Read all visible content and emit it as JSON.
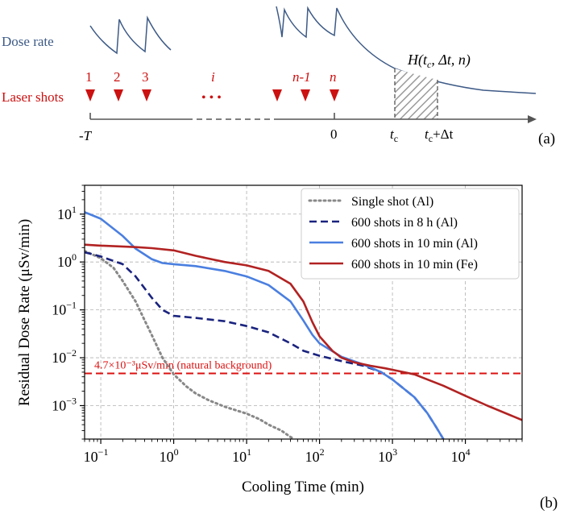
{
  "panel_a": {
    "label": "(a)",
    "dose_rate_label": "Dose rate",
    "laser_shots_label": "Laser shots",
    "shot_numbers": [
      "1",
      "2",
      "3",
      "i",
      "n-1",
      "n"
    ],
    "dots": "• • •",
    "axis_labels": {
      "start": "-T",
      "zero": "0",
      "tc": "t",
      "tc_sub": "c",
      "tc_dt_prefix": "t",
      "tc_dt_sub": "c",
      "tc_dt_suffix": "+Δt"
    },
    "function_label": "H(t",
    "function_label_sub": "c",
    "function_label_rest": ", Δt, n)",
    "colors": {
      "dose": "#3d5a86",
      "shots": "#cc1111",
      "hatch": "#9a9a9a"
    }
  },
  "chart_data": {
    "type": "line",
    "panel_label": "(b)",
    "xlabel": "Cooling Time (min)",
    "ylabel": "Residual Dose Rate (μSv/min)",
    "xscale": "log",
    "yscale": "log",
    "xlim": [
      0.06,
      60000
    ],
    "ylim": [
      0.0002,
      40
    ],
    "xticks": [
      {
        "value": 0.1,
        "base": "10",
        "exp": "−1"
      },
      {
        "value": 1,
        "base": "10",
        "exp": "0"
      },
      {
        "value": 10,
        "base": "10",
        "exp": "1"
      },
      {
        "value": 100,
        "base": "10",
        "exp": "2"
      },
      {
        "value": 1000,
        "base": "10",
        "exp": "3"
      },
      {
        "value": 10000,
        "base": "10",
        "exp": "4"
      }
    ],
    "yticks": [
      {
        "value": 0.001,
        "base": "10",
        "exp": "−3"
      },
      {
        "value": 0.01,
        "base": "10",
        "exp": "−2"
      },
      {
        "value": 0.1,
        "base": "10",
        "exp": "−1"
      },
      {
        "value": 1,
        "base": "10",
        "exp": "0"
      },
      {
        "value": 10,
        "base": "10",
        "exp": "1"
      }
    ],
    "grid": true,
    "legend_position": "top-right",
    "background_line": {
      "y": 0.0047,
      "label": "4.7×10⁻³μSv/min (natural background)",
      "color": "#dd1111"
    },
    "series": [
      {
        "name": "Single shot (Al)",
        "color": "#888888",
        "style": "dotted",
        "points": [
          [
            0.06,
            1.7
          ],
          [
            0.1,
            1.2
          ],
          [
            0.15,
            0.75
          ],
          [
            0.2,
            0.4
          ],
          [
            0.3,
            0.15
          ],
          [
            0.4,
            0.06
          ],
          [
            0.5,
            0.03
          ],
          [
            0.7,
            0.01
          ],
          [
            1,
            0.0045
          ],
          [
            1.5,
            0.0025
          ],
          [
            2,
            0.0018
          ],
          [
            3,
            0.0013
          ],
          [
            5,
            0.00095
          ],
          [
            10,
            0.00068
          ],
          [
            15,
            0.00052
          ],
          [
            20,
            0.0004
          ],
          [
            30,
            0.0003
          ],
          [
            40,
            0.00022
          ],
          [
            45,
            0.0002
          ]
        ]
      },
      {
        "name": "600 shots in 8 h (Al)",
        "color": "#1a237e",
        "style": "dashed",
        "points": [
          [
            0.06,
            1.6
          ],
          [
            0.1,
            1.3
          ],
          [
            0.2,
            0.9
          ],
          [
            0.3,
            0.5
          ],
          [
            0.5,
            0.18
          ],
          [
            0.7,
            0.1
          ],
          [
            1,
            0.075
          ],
          [
            2,
            0.068
          ],
          [
            5,
            0.058
          ],
          [
            10,
            0.046
          ],
          [
            20,
            0.034
          ],
          [
            40,
            0.02
          ],
          [
            60,
            0.014
          ],
          [
            100,
            0.011
          ],
          [
            200,
            0.0085
          ],
          [
            400,
            0.0068
          ],
          [
            700,
            0.005
          ],
          [
            1000,
            0.0035
          ],
          [
            2000,
            0.0015
          ],
          [
            3000,
            0.0007
          ],
          [
            4000,
            0.00035
          ],
          [
            5000,
            0.0002
          ]
        ]
      },
      {
        "name": "600 shots in 10 min (Al)",
        "color": "#4a7fe0",
        "style": "solid",
        "points": [
          [
            0.06,
            11
          ],
          [
            0.1,
            8
          ],
          [
            0.2,
            3.5
          ],
          [
            0.3,
            1.9
          ],
          [
            0.5,
            1.15
          ],
          [
            0.7,
            0.95
          ],
          [
            1,
            0.9
          ],
          [
            2,
            0.82
          ],
          [
            5,
            0.65
          ],
          [
            10,
            0.5
          ],
          [
            20,
            0.33
          ],
          [
            40,
            0.15
          ],
          [
            60,
            0.06
          ],
          [
            80,
            0.03
          ],
          [
            100,
            0.02
          ],
          [
            200,
            0.0105
          ],
          [
            400,
            0.0072
          ],
          [
            700,
            0.005
          ],
          [
            1000,
            0.0035
          ],
          [
            2000,
            0.0015
          ],
          [
            3000,
            0.0007
          ],
          [
            4000,
            0.00035
          ],
          [
            5000,
            0.0002
          ]
        ]
      },
      {
        "name": "600 shots in 10 min (Fe)",
        "color": "#b22222",
        "style": "solid",
        "points": [
          [
            0.06,
            2.3
          ],
          [
            0.1,
            2.2
          ],
          [
            0.3,
            2.05
          ],
          [
            0.5,
            1.95
          ],
          [
            1,
            1.75
          ],
          [
            2,
            1.35
          ],
          [
            5,
            1.0
          ],
          [
            10,
            0.85
          ],
          [
            20,
            0.65
          ],
          [
            40,
            0.35
          ],
          [
            60,
            0.15
          ],
          [
            80,
            0.055
          ],
          [
            100,
            0.028
          ],
          [
            150,
            0.014
          ],
          [
            200,
            0.01
          ],
          [
            300,
            0.008
          ],
          [
            500,
            0.0068
          ],
          [
            800,
            0.006
          ],
          [
            1000,
            0.0056
          ],
          [
            2000,
            0.0045
          ],
          [
            5000,
            0.0026
          ],
          [
            10000,
            0.0016
          ],
          [
            20000,
            0.001
          ],
          [
            60000,
            0.0005
          ]
        ]
      }
    ]
  }
}
